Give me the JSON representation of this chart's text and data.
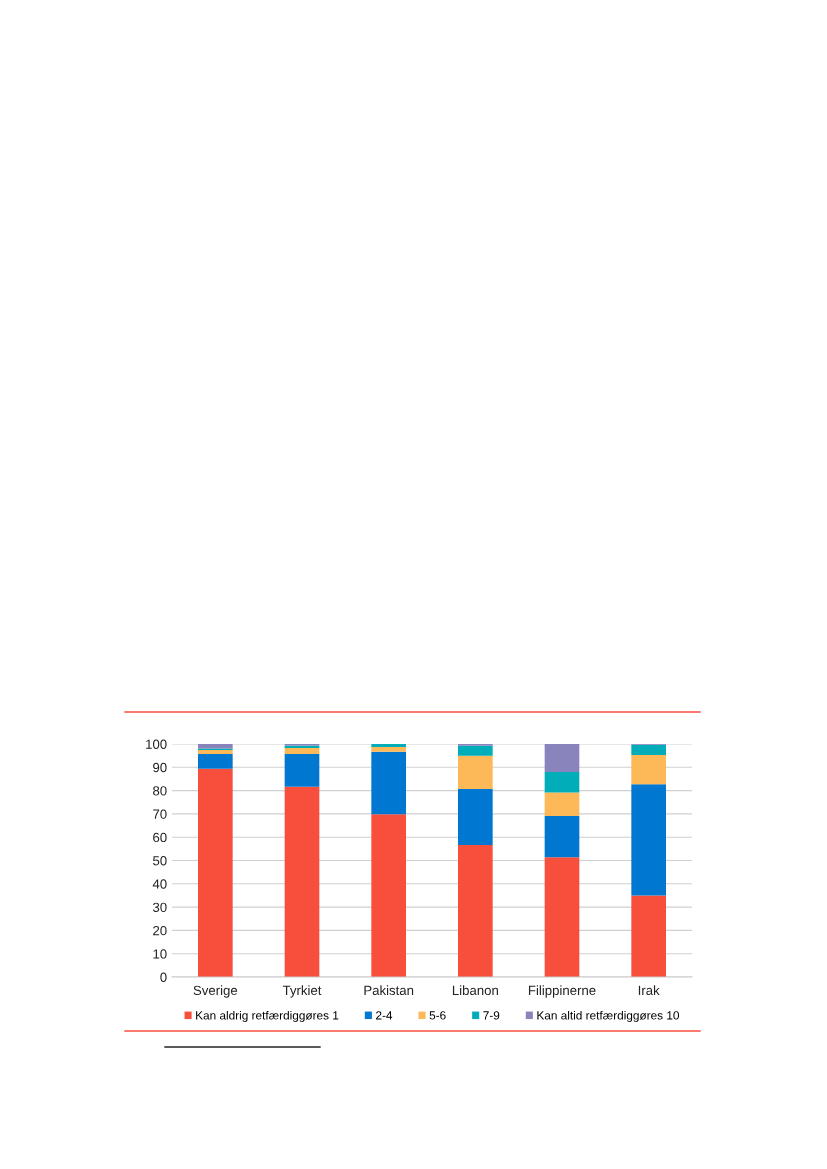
{
  "chart_data": {
    "type": "bar",
    "stacked": true,
    "categories": [
      "Sverige",
      "Tyrkiet",
      "Pakistan",
      "Libanon",
      "Filippinerne",
      "Irak"
    ],
    "series": [
      {
        "name": "Kan aldrig retfærdiggøres 1",
        "color": "#f84e3c",
        "values": [
          89.4,
          81.7,
          69.9,
          56.6,
          51.4,
          35.0
        ]
      },
      {
        "name": "2-4",
        "color": "#0077d0",
        "values": [
          6.3,
          14.0,
          26.8,
          24.1,
          17.7,
          47.7
        ]
      },
      {
        "name": "5-6",
        "color": "#fdb858",
        "values": [
          1.7,
          2.6,
          2.0,
          14.3,
          10.1,
          12.6
        ]
      },
      {
        "name": "7-9",
        "color": "#00adb8",
        "values": [
          0.7,
          1.1,
          1.3,
          4.3,
          8.8,
          4.4
        ]
      },
      {
        "name": "Kan altid retfærdiggøres 10",
        "color": "#8a84bd",
        "values": [
          1.9,
          0.6,
          0.0,
          0.7,
          12.0,
          0.3
        ]
      }
    ],
    "ylim": [
      0,
      100
    ],
    "yticks": [
      0,
      10,
      20,
      30,
      40,
      50,
      60,
      70,
      80,
      90,
      100
    ],
    "grid": "y",
    "legend": "bottom"
  }
}
